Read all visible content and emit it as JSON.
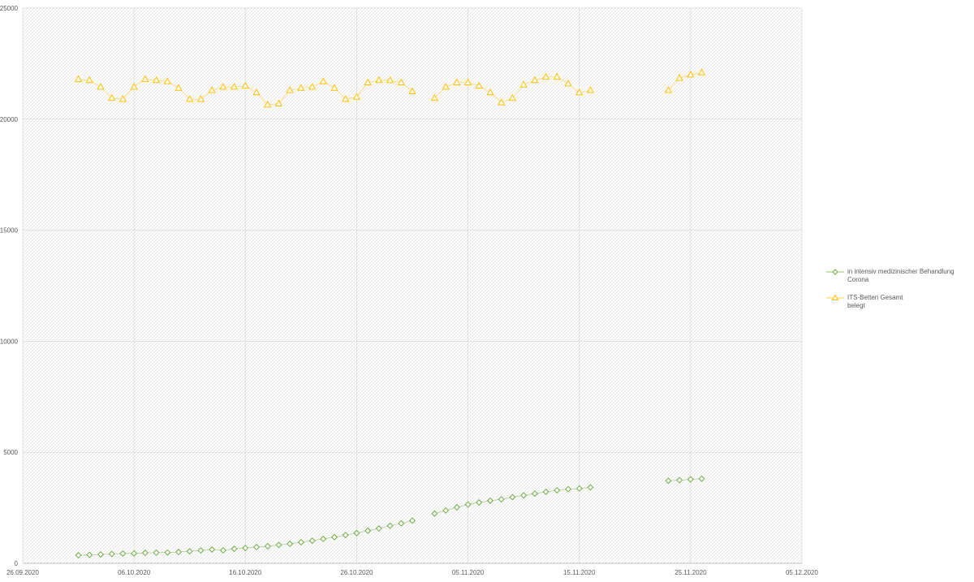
{
  "chart_data": {
    "type": "line",
    "title": "",
    "xlabel": "",
    "ylabel": "",
    "x_tick_labels": [
      "26.09.2020",
      "06.10.2020",
      "16.10.2020",
      "26.10.2020",
      "05.11.2020",
      "15.11.2020",
      "25.11.2020",
      "05.12.2020"
    ],
    "x_range": [
      "26.09.2020",
      "05.12.2020"
    ],
    "y_tick_labels": [
      "0",
      "5000",
      "10000",
      "15000",
      "20000",
      "25000"
    ],
    "ylim": [
      0,
      25000
    ],
    "grid": true,
    "legend_position": "right",
    "series": [
      {
        "name": "in intensiv medizinischer Behandlung Corona",
        "color": "#70ad47",
        "marker": "diamond",
        "points": [
          [
            "01.10.2020",
            360
          ],
          [
            "02.10.2020",
            380
          ],
          [
            "03.10.2020",
            400
          ],
          [
            "04.10.2020",
            420
          ],
          [
            "05.10.2020",
            440
          ],
          [
            "06.10.2020",
            450
          ],
          [
            "07.10.2020",
            470
          ],
          [
            "08.10.2020",
            480
          ],
          [
            "09.10.2020",
            490
          ],
          [
            "10.10.2020",
            510
          ],
          [
            "11.10.2020",
            540
          ],
          [
            "12.10.2020",
            580
          ],
          [
            "13.10.2020",
            620
          ],
          [
            "14.10.2020",
            580
          ],
          [
            "15.10.2020",
            650
          ],
          [
            "16.10.2020",
            690
          ],
          [
            "17.10.2020",
            730
          ],
          [
            "18.10.2020",
            770
          ],
          [
            "19.10.2020",
            830
          ],
          [
            "20.10.2020",
            880
          ],
          [
            "21.10.2020",
            950
          ],
          [
            "22.10.2020",
            1020
          ],
          [
            "23.10.2020",
            1100
          ],
          [
            "24.10.2020",
            1180
          ],
          [
            "25.10.2020",
            1270
          ],
          [
            "26.10.2020",
            1360
          ],
          [
            "27.10.2020",
            1470
          ],
          [
            "28.10.2020",
            1570
          ],
          [
            "29.10.2020",
            1690
          ],
          [
            "30.10.2020",
            1800
          ],
          [
            "31.10.2020",
            1920
          ],
          [
            "02.11.2020",
            2240
          ],
          [
            "03.11.2020",
            2380
          ],
          [
            "04.11.2020",
            2520
          ],
          [
            "05.11.2020",
            2650
          ],
          [
            "06.11.2020",
            2740
          ],
          [
            "07.11.2020",
            2820
          ],
          [
            "08.11.2020",
            2880
          ],
          [
            "09.11.2020",
            2980
          ],
          [
            "10.11.2020",
            3060
          ],
          [
            "11.11.2020",
            3140
          ],
          [
            "12.11.2020",
            3220
          ],
          [
            "13.11.2020",
            3290
          ],
          [
            "14.11.2020",
            3340
          ],
          [
            "15.11.2020",
            3370
          ],
          [
            "16.11.2020",
            3420
          ],
          [
            "23.11.2020",
            3720
          ],
          [
            "24.11.2020",
            3740
          ],
          [
            "25.11.2020",
            3780
          ],
          [
            "26.11.2020",
            3810
          ]
        ]
      },
      {
        "name": "ITS-Betten Gesamt\nbelegt",
        "color": "#ffc000",
        "marker": "triangle",
        "points": [
          [
            "01.10.2020",
            21800
          ],
          [
            "02.10.2020",
            21750
          ],
          [
            "03.10.2020",
            21450
          ],
          [
            "04.10.2020",
            20950
          ],
          [
            "05.10.2020",
            20900
          ],
          [
            "06.10.2020",
            21450
          ],
          [
            "07.10.2020",
            21800
          ],
          [
            "08.10.2020",
            21750
          ],
          [
            "09.10.2020",
            21700
          ],
          [
            "10.10.2020",
            21400
          ],
          [
            "11.10.2020",
            20900
          ],
          [
            "12.10.2020",
            20900
          ],
          [
            "13.10.2020",
            21300
          ],
          [
            "14.10.2020",
            21450
          ],
          [
            "15.10.2020",
            21450
          ],
          [
            "16.10.2020",
            21500
          ],
          [
            "17.10.2020",
            21200
          ],
          [
            "18.10.2020",
            20650
          ],
          [
            "19.10.2020",
            20700
          ],
          [
            "20.10.2020",
            21300
          ],
          [
            "21.10.2020",
            21400
          ],
          [
            "22.10.2020",
            21450
          ],
          [
            "23.10.2020",
            21700
          ],
          [
            "24.10.2020",
            21400
          ],
          [
            "25.10.2020",
            20900
          ],
          [
            "26.10.2020",
            21000
          ],
          [
            "27.10.2020",
            21650
          ],
          [
            "28.10.2020",
            21750
          ],
          [
            "29.10.2020",
            21750
          ],
          [
            "30.10.2020",
            21650
          ],
          [
            "31.10.2020",
            21250
          ],
          [
            "02.11.2020",
            20950
          ],
          [
            "03.11.2020",
            21450
          ],
          [
            "04.11.2020",
            21650
          ],
          [
            "05.11.2020",
            21650
          ],
          [
            "06.11.2020",
            21500
          ],
          [
            "07.11.2020",
            21200
          ],
          [
            "08.11.2020",
            20750
          ],
          [
            "09.11.2020",
            20950
          ],
          [
            "10.11.2020",
            21550
          ],
          [
            "11.11.2020",
            21750
          ],
          [
            "12.11.2020",
            21900
          ],
          [
            "13.11.2020",
            21900
          ],
          [
            "14.11.2020",
            21600
          ],
          [
            "15.11.2020",
            21200
          ],
          [
            "16.11.2020",
            21300
          ],
          [
            "23.11.2020",
            21300
          ],
          [
            "24.11.2020",
            21850
          ],
          [
            "25.11.2020",
            22000
          ],
          [
            "26.11.2020",
            22100
          ]
        ]
      }
    ]
  }
}
